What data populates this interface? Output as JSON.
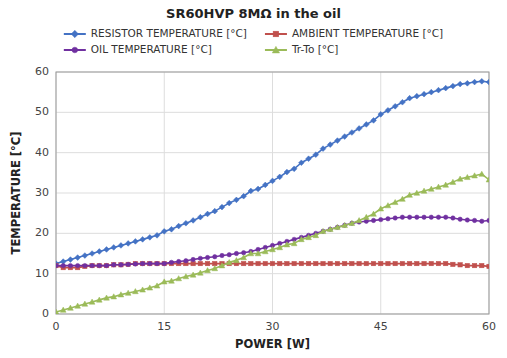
{
  "chart_data": {
    "type": "line",
    "title": "SR60HVP  8MΩ in the oil",
    "x_label": "POWER [W]",
    "y_label": "TEMPERATURE [°C]",
    "xlim": [
      0,
      60
    ],
    "ylim": [
      0,
      60
    ],
    "xticks": [
      0,
      15,
      30,
      45,
      60
    ],
    "yticks": [
      0,
      10,
      20,
      30,
      40,
      50,
      60
    ],
    "grid": true,
    "legend": "top",
    "x": [
      0,
      1,
      2,
      3,
      4,
      5,
      6,
      7,
      8,
      9,
      10,
      11,
      12,
      13,
      14,
      15,
      16,
      17,
      18,
      19,
      20,
      21,
      22,
      23,
      24,
      25,
      26,
      27,
      28,
      29,
      30,
      31,
      32,
      33,
      34,
      35,
      36,
      37,
      38,
      39,
      40,
      41,
      42,
      43,
      44,
      45,
      46,
      47,
      48,
      49,
      50,
      51,
      52,
      53,
      54,
      55,
      56,
      57,
      58,
      59,
      60
    ],
    "series": [
      {
        "name": "RESISTOR TEMPERATURE [°C]",
        "color": "#4472C4",
        "marker": "diamond",
        "values": [
          12.5,
          13.0,
          13.5,
          14.0,
          14.5,
          15.0,
          15.5,
          16.0,
          16.5,
          17.0,
          17.5,
          18.0,
          18.5,
          19.0,
          19.5,
          20.5,
          21.0,
          21.8,
          22.5,
          23.2,
          24.0,
          24.8,
          25.5,
          26.5,
          27.5,
          28.3,
          29.2,
          30.5,
          31.0,
          32.0,
          33.0,
          34.0,
          35.2,
          36.0,
          37.5,
          38.5,
          39.5,
          41.0,
          42.0,
          43.0,
          44.0,
          45.0,
          46.0,
          47.0,
          48.0,
          49.5,
          50.5,
          51.5,
          52.5,
          53.5,
          54.0,
          54.5,
          55.0,
          55.5,
          56.0,
          56.5,
          57.0,
          57.2,
          57.5,
          57.7,
          57.5
        ]
      },
      {
        "name": "AMBIENT TEMPERATURE [°C]",
        "color": "#C0504D",
        "marker": "square",
        "values": [
          12.0,
          11.5,
          11.5,
          11.5,
          11.8,
          12.0,
          12.0,
          12.0,
          12.2,
          12.2,
          12.3,
          12.5,
          12.5,
          12.5,
          12.5,
          12.5,
          12.5,
          12.5,
          12.5,
          12.5,
          12.5,
          12.5,
          12.5,
          12.5,
          12.5,
          12.5,
          12.5,
          12.5,
          12.5,
          12.5,
          12.5,
          12.5,
          12.5,
          12.5,
          12.5,
          12.5,
          12.5,
          12.5,
          12.5,
          12.5,
          12.5,
          12.5,
          12.5,
          12.5,
          12.5,
          12.5,
          12.5,
          12.5,
          12.5,
          12.5,
          12.5,
          12.5,
          12.5,
          12.5,
          12.5,
          12.3,
          12.2,
          12.0,
          12.0,
          12.0,
          11.8
        ]
      },
      {
        "name": "OIL TEMPERATURE [°C]",
        "color": "#7030A0",
        "marker": "circle",
        "values": [
          12.0,
          12.0,
          12.0,
          12.0,
          12.0,
          12.0,
          12.0,
          12.0,
          12.2,
          12.2,
          12.3,
          12.4,
          12.5,
          12.5,
          12.5,
          12.5,
          12.8,
          13.0,
          13.2,
          13.5,
          13.8,
          14.0,
          14.2,
          14.5,
          14.7,
          15.0,
          15.2,
          15.5,
          16.0,
          16.5,
          17.0,
          17.5,
          18.0,
          18.5,
          19.0,
          19.5,
          20.0,
          20.5,
          21.0,
          21.5,
          22.0,
          22.5,
          22.8,
          23.0,
          23.2,
          23.4,
          23.6,
          23.8,
          24.0,
          24.0,
          24.0,
          24.0,
          24.0,
          24.0,
          24.0,
          23.8,
          23.5,
          23.3,
          23.2,
          23.0,
          23.2
        ]
      },
      {
        "name": "Tr-To [°C]",
        "color": "#9BBB59",
        "marker": "triangle",
        "values": [
          0.5,
          1.0,
          1.5,
          2.0,
          2.5,
          3.0,
          3.5,
          4.0,
          4.3,
          4.8,
          5.2,
          5.6,
          6.0,
          6.5,
          7.0,
          8.0,
          8.2,
          8.8,
          9.3,
          9.7,
          10.2,
          10.8,
          11.3,
          12.0,
          12.8,
          13.3,
          14.0,
          15.0,
          15.0,
          15.5,
          16.0,
          16.5,
          17.2,
          17.5,
          18.5,
          19.0,
          19.5,
          20.5,
          21.0,
          21.5,
          22.0,
          22.5,
          23.2,
          24.0,
          24.8,
          26.1,
          26.9,
          27.7,
          28.5,
          29.5,
          30.0,
          30.5,
          31.0,
          31.5,
          32.0,
          32.7,
          33.5,
          33.9,
          34.3,
          34.7,
          33.3
        ]
      }
    ]
  }
}
